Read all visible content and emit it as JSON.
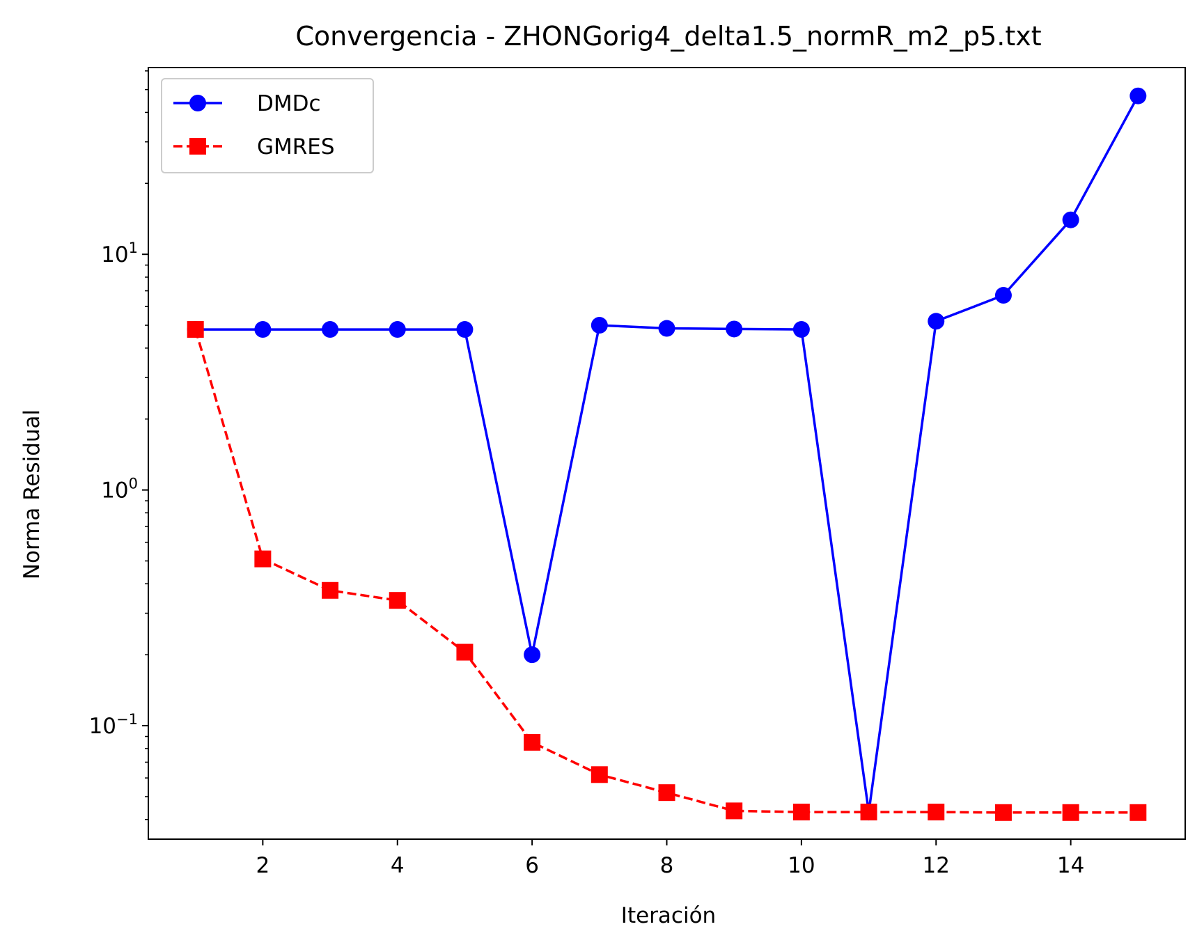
{
  "chart_data": {
    "type": "line",
    "title": "Convergencia - ZHONGorig4_delta1.5_normR_m2_p5.txt",
    "xlabel": "Iteración",
    "ylabel": "Norma Residual",
    "yscale": "log",
    "xlim": [
      0.3,
      15.7
    ],
    "ylim": [
      0.033,
      62
    ],
    "x_ticks": [
      2,
      4,
      6,
      8,
      10,
      12,
      14
    ],
    "y_ticks": [
      {
        "value": 0.1,
        "base": "10",
        "exp": "−1"
      },
      {
        "value": 1,
        "base": "10",
        "exp": "0"
      },
      {
        "value": 10,
        "base": "10",
        "exp": "1"
      }
    ],
    "grid": false,
    "legend_position": "upper-left",
    "x": [
      1,
      2,
      3,
      4,
      5,
      6,
      7,
      8,
      9,
      10,
      11,
      12,
      13,
      14,
      15
    ],
    "series": [
      {
        "name": "DMDc",
        "color": "#0000ff",
        "linestyle": "solid",
        "marker": "circle",
        "values": [
          4.8,
          4.8,
          4.8,
          4.8,
          4.8,
          0.2,
          5.0,
          4.85,
          4.82,
          4.8,
          0.043,
          5.2,
          6.7,
          14.0,
          47.0
        ]
      },
      {
        "name": "GMRES",
        "color": "#ff0000",
        "linestyle": "dashed",
        "marker": "square",
        "values": [
          4.8,
          0.51,
          0.375,
          0.34,
          0.205,
          0.085,
          0.062,
          0.052,
          0.0435,
          0.043,
          0.043,
          0.043,
          0.0428,
          0.0428,
          0.0428
        ]
      }
    ]
  }
}
